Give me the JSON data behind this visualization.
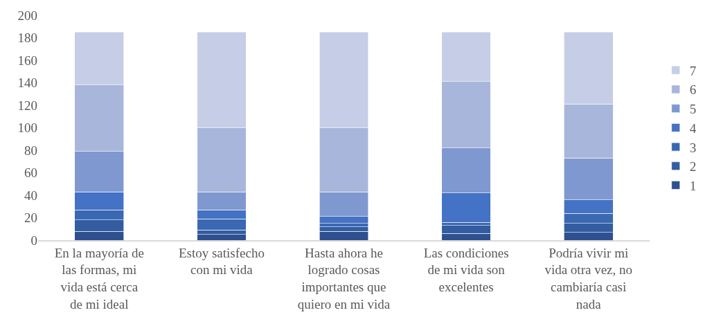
{
  "chart_data": {
    "type": "bar",
    "stacked": true,
    "categories": [
      "En la mayoría de las formas, mi vida está cerca de mi ideal",
      "Estoy satisfecho con mi vida",
      "Hasta ahora he logrado cosas importantes que quiero en mi vida",
      "Las condiciones de mi vida son excelentes",
      "Podría vivir mi vida otra vez, no cambiaría casi nada"
    ],
    "series": [
      {
        "name": "1",
        "color": "#2f5090",
        "values": [
          8,
          5,
          8,
          6,
          7
        ]
      },
      {
        "name": "2",
        "color": "#335da0",
        "values": [
          10,
          4,
          4,
          7,
          8
        ]
      },
      {
        "name": "3",
        "color": "#3a68b2",
        "values": [
          9,
          10,
          3,
          3,
          9
        ]
      },
      {
        "name": "4",
        "color": "#4472c4",
        "values": [
          16,
          8,
          6,
          26,
          12
        ]
      },
      {
        "name": "5",
        "color": "#8098d0",
        "values": [
          36,
          16,
          22,
          40,
          37
        ]
      },
      {
        "name": "6",
        "color": "#a8b6db",
        "values": [
          59,
          57,
          57,
          59,
          48
        ]
      },
      {
        "name": "7",
        "color": "#c5cee6",
        "values": [
          47,
          85,
          85,
          44,
          64
        ]
      }
    ],
    "ylim": [
      0,
      200
    ],
    "yticks": [
      0,
      20,
      40,
      60,
      80,
      100,
      120,
      140,
      160,
      180,
      200
    ],
    "grid": false,
    "legend": "right"
  }
}
